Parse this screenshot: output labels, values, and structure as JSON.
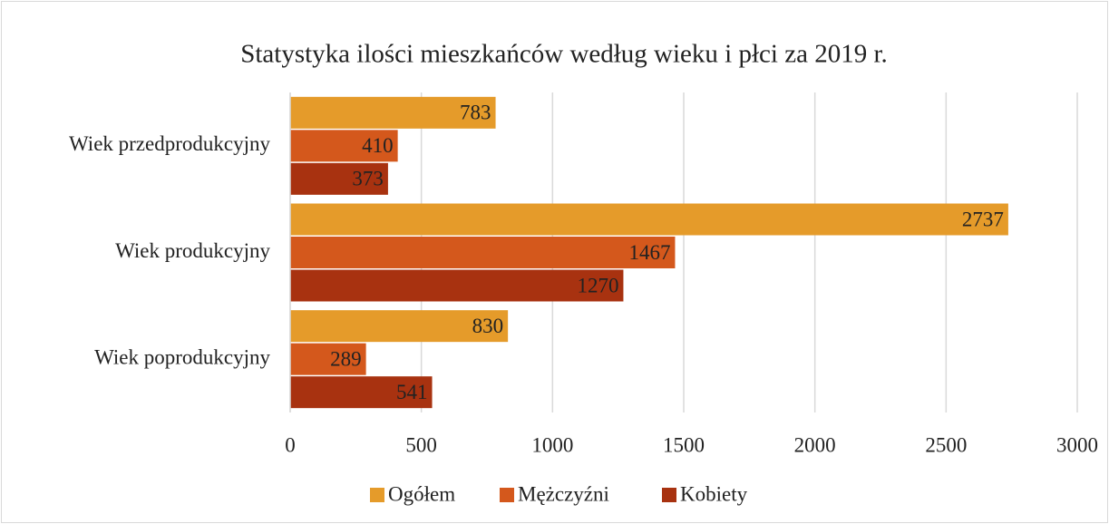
{
  "chart_data": {
    "type": "bar",
    "orientation": "horizontal",
    "title": "Statystyka ilości mieszkańców według wieku i płci za 2019 r.",
    "categories": [
      "Wiek przedprodukcyjny",
      "Wiek produkcyjny",
      "Wiek poprodukcyjny"
    ],
    "series": [
      {
        "name": "Ogółem",
        "color": "#e59b2a",
        "values": [
          783,
          2737,
          830
        ]
      },
      {
        "name": "Mężczyźni",
        "color": "#d4581c",
        "values": [
          410,
          1467,
          289
        ]
      },
      {
        "name": "Kobiety",
        "color": "#a83210",
        "values": [
          373,
          1270,
          541
        ]
      }
    ],
    "xlim": [
      0,
      3000
    ],
    "xticks": [
      0,
      500,
      1000,
      1500,
      2000,
      2500,
      3000
    ],
    "grid": true,
    "legend": "bottom",
    "data_labels": true
  }
}
